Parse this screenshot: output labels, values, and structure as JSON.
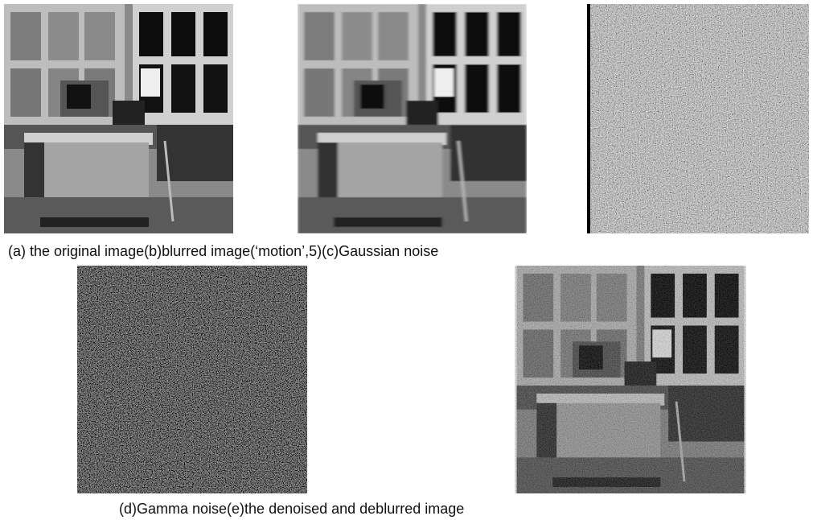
{
  "captions": [
    "(a) the original image(b)blurred image(‘motion’,5)(c)Gaussian noise",
    "(d)Gamma noise(e)the denoised and deblurred image"
  ]
}
